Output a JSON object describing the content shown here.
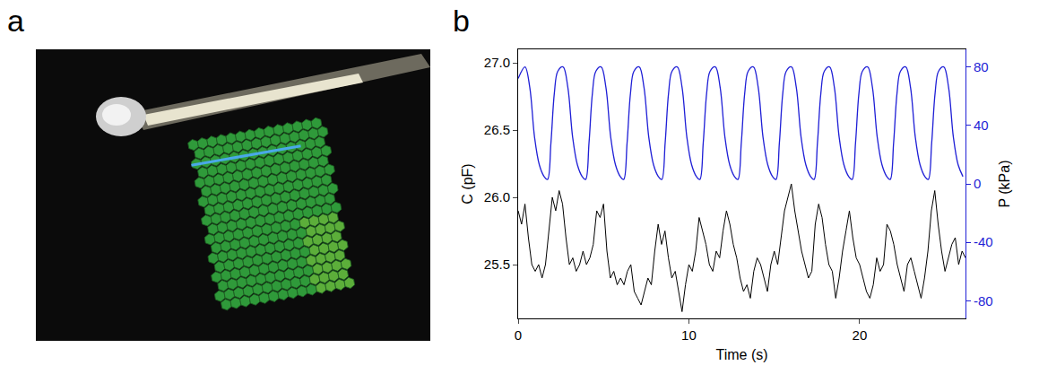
{
  "panel_labels": [
    "a",
    "b"
  ],
  "chart_data": {
    "type": "line",
    "xlabel": "Time (s)",
    "ylabel": "C (pF)",
    "y2label": "P (kPa)",
    "xlim": [
      0,
      26.2
    ],
    "xticks": [
      0,
      10,
      20
    ],
    "ylim": [
      25.1,
      27.1
    ],
    "yticks": [
      25.5,
      {
        "value": 26,
        "label": "26.0"
      },
      26.5,
      {
        "value": 27,
        "label": "27.0"
      }
    ],
    "y2lim": [
      -92,
      92
    ],
    "y2ticks": [
      -80,
      -40,
      0,
      40,
      80
    ],
    "grid": false,
    "series": [
      {
        "color": "#000000",
        "axis": "y",
        "x": [
          0,
          0.2,
          0.4,
          0.6,
          0.8,
          1,
          1.2,
          1.4,
          1.6,
          1.8,
          2,
          2.2,
          2.4,
          2.6,
          2.8,
          3,
          3.2,
          3.4,
          3.6,
          3.8,
          4,
          4.2,
          4.4,
          4.6,
          4.8,
          5,
          5.2,
          5.4,
          5.6,
          5.8,
          6,
          6.2,
          6.4,
          6.6,
          6.8,
          7,
          7.2,
          7.4,
          7.6,
          7.8,
          8,
          8.2,
          8.4,
          8.6,
          8.8,
          9,
          9.2,
          9.4,
          9.6,
          9.8,
          10,
          10.2,
          10.4,
          10.6,
          10.8,
          11,
          11.2,
          11.4,
          11.6,
          11.8,
          12,
          12.2,
          12.4,
          12.6,
          12.8,
          13,
          13.2,
          13.4,
          13.6,
          13.8,
          14,
          14.2,
          14.4,
          14.6,
          14.8,
          15,
          15.2,
          15.4,
          15.6,
          15.8,
          16,
          16.2,
          16.4,
          16.6,
          16.8,
          17,
          17.2,
          17.4,
          17.6,
          17.8,
          18,
          18.2,
          18.4,
          18.6,
          18.8,
          19,
          19.2,
          19.4,
          19.6,
          19.8,
          20,
          20.2,
          20.4,
          20.6,
          20.8,
          21,
          21.2,
          21.4,
          21.6,
          21.8,
          22,
          22.2,
          22.4,
          22.6,
          22.8,
          23,
          23.2,
          23.4,
          23.6,
          23.8,
          24,
          24.2,
          24.4,
          24.6,
          24.8,
          25,
          25.2,
          25.4,
          25.6,
          25.8,
          26,
          26.2
        ],
        "values": [
          25.9,
          25.8,
          25.95,
          25.7,
          25.5,
          25.45,
          25.5,
          25.4,
          25.5,
          25.75,
          26.0,
          25.9,
          26.05,
          25.95,
          25.7,
          25.5,
          25.55,
          25.45,
          25.5,
          25.6,
          25.5,
          25.55,
          25.65,
          25.9,
          25.85,
          25.95,
          25.6,
          25.4,
          25.45,
          25.35,
          25.4,
          25.35,
          25.45,
          25.5,
          25.3,
          25.25,
          25.2,
          25.3,
          25.4,
          25.35,
          25.6,
          25.8,
          25.65,
          25.75,
          25.55,
          25.4,
          25.45,
          25.3,
          25.15,
          25.35,
          25.5,
          25.45,
          25.6,
          25.85,
          25.75,
          25.65,
          25.5,
          25.45,
          25.6,
          25.55,
          25.75,
          25.9,
          25.8,
          25.65,
          25.55,
          25.4,
          25.3,
          25.35,
          25.25,
          25.45,
          25.55,
          25.5,
          25.4,
          25.3,
          25.5,
          25.6,
          25.5,
          25.7,
          25.9,
          26.0,
          26.1,
          25.9,
          25.75,
          25.6,
          25.5,
          25.4,
          25.45,
          25.8,
          25.95,
          25.85,
          25.65,
          25.5,
          25.45,
          25.25,
          25.4,
          25.6,
          25.75,
          25.9,
          25.7,
          25.55,
          25.5,
          25.4,
          25.3,
          25.25,
          25.35,
          25.55,
          25.45,
          25.5,
          25.8,
          25.75,
          25.65,
          25.5,
          25.4,
          25.3,
          25.5,
          25.55,
          25.45,
          25.35,
          25.25,
          25.4,
          25.6,
          25.9,
          26.05,
          25.8,
          25.6,
          25.45,
          25.55,
          25.65,
          25.7,
          25.5,
          25.6,
          25.55
        ]
      },
      {
        "color": "#1f1fd6",
        "axis": "y2",
        "x": [
          0,
          0.4,
          0.68,
          0.96,
          1.24,
          1.52,
          1.72,
          1.92,
          2.12,
          2.32,
          2.63,
          2.91,
          3.19,
          3.47,
          3.75,
          3.95,
          4.15,
          4.35,
          4.55,
          4.86,
          5.14,
          5.42,
          5.7,
          5.98,
          6.18,
          6.38,
          6.58,
          6.78,
          7.09,
          7.37,
          7.65,
          7.93,
          8.21,
          8.41,
          8.61,
          8.81,
          9.01,
          9.32,
          9.6,
          9.88,
          10.16,
          10.44,
          10.64,
          10.84,
          11.04,
          11.24,
          11.55,
          11.83,
          12.11,
          12.39,
          12.67,
          12.87,
          13.07,
          13.27,
          13.47,
          13.78,
          14.06,
          14.34,
          14.62,
          14.9,
          15.1,
          15.3,
          15.5,
          15.7,
          16.01,
          16.29,
          16.57,
          16.85,
          17.13,
          17.33,
          17.53,
          17.73,
          17.93,
          18.24,
          18.52,
          18.8,
          19.08,
          19.36,
          19.56,
          19.76,
          19.96,
          20.16,
          20.47,
          20.75,
          21.03,
          21.31,
          21.59,
          21.79,
          21.99,
          22.19,
          22.39,
          22.7,
          22.98,
          23.26,
          23.54,
          23.82,
          24.02,
          24.22,
          24.42,
          24.62,
          24.93,
          25.21,
          25.49,
          25.77,
          26.05
        ],
        "values": [
          72,
          80,
          66,
          32,
          13,
          5,
          3,
          28,
          62,
          77,
          80,
          66,
          32,
          13,
          5,
          3,
          28,
          62,
          77,
          80,
          66,
          32,
          13,
          5,
          3,
          28,
          62,
          77,
          80,
          66,
          32,
          13,
          5,
          3,
          28,
          62,
          77,
          80,
          66,
          32,
          13,
          5,
          3,
          28,
          62,
          77,
          80,
          66,
          32,
          13,
          5,
          3,
          28,
          62,
          77,
          80,
          66,
          32,
          13,
          5,
          3,
          28,
          62,
          77,
          80,
          66,
          32,
          13,
          5,
          3,
          28,
          62,
          77,
          80,
          66,
          32,
          13,
          5,
          3,
          28,
          62,
          77,
          80,
          66,
          32,
          13,
          5,
          3,
          28,
          62,
          77,
          80,
          66,
          32,
          13,
          5,
          3,
          28,
          62,
          77,
          80,
          66,
          32,
          13,
          5
        ]
      }
    ]
  }
}
